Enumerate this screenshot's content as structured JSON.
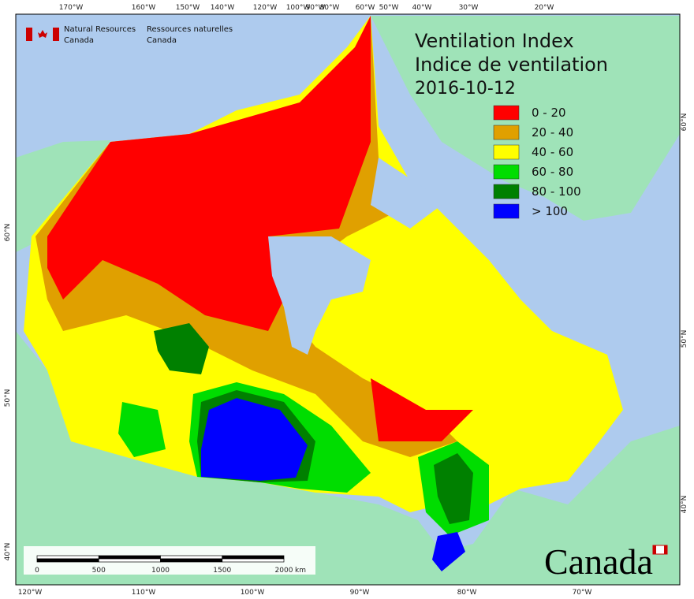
{
  "header": {
    "agency_en": [
      "Natural Resources",
      "Canada"
    ],
    "agency_fr": [
      "Ressources naturelles",
      "Canada"
    ]
  },
  "title": [
    "Ventilation Index",
    "Indice de ventilation"
  ],
  "date": "2016-10-12",
  "legend": [
    {
      "label": "0 - 20",
      "color": "#ff0000"
    },
    {
      "label": "20 - 40",
      "color": "#e0a000"
    },
    {
      "label": "40 - 60",
      "color": "#ffff00"
    },
    {
      "label": "60 - 80",
      "color": "#00dd00"
    },
    {
      "label": "80 - 100",
      "color": "#008000"
    },
    {
      "label": "> 100",
      "color": "#0000ff"
    }
  ],
  "top_longitudes": [
    "170°W",
    "160°W",
    "150°W",
    "140°W",
    "120°W",
    "100°W",
    "90°W",
    "80°W",
    "60°W",
    "50°W",
    "40°W",
    "30°W",
    "20°W"
  ],
  "bottom_longitudes": [
    "120°W",
    "110°W",
    "100°W",
    "90°W",
    "80°W",
    "70°W"
  ],
  "latitudes_left": [
    "60°N",
    "50°N",
    "40°N"
  ],
  "latitudes_right": [
    "60°N",
    "50°N",
    "40°N"
  ],
  "scale": {
    "labels": [
      0,
      500,
      1000,
      1500,
      2000
    ],
    "unit": "km"
  },
  "wordmark": "Canada"
}
